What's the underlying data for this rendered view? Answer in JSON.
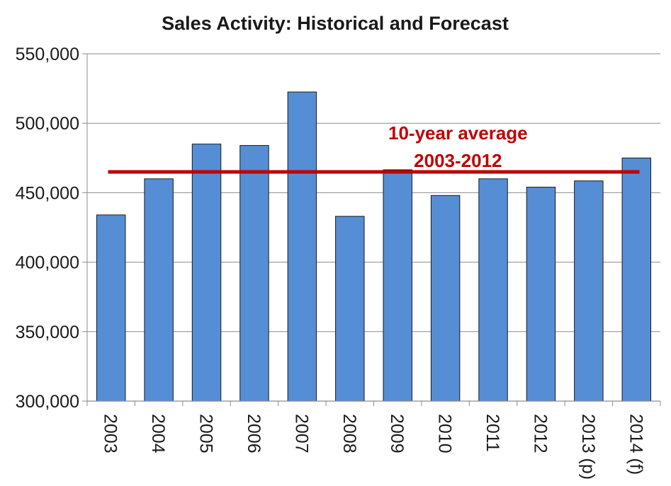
{
  "chart_data": {
    "type": "bar",
    "title": "Sales Activity: Historical and Forecast",
    "xlabel": "",
    "ylabel": "",
    "categories": [
      "2003",
      "2004",
      "2005",
      "2006",
      "2007",
      "2008",
      "2009",
      "2010",
      "2011",
      "2012",
      "2013 (p)",
      "2014 (f)"
    ],
    "values": [
      434000,
      460000,
      485000,
      484000,
      522500,
      433000,
      466500,
      448000,
      460000,
      454000,
      458500,
      475000
    ],
    "ylim": [
      300000,
      550000
    ],
    "yticks": [
      300000,
      350000,
      400000,
      450000,
      500000,
      550000
    ],
    "ytick_labels": [
      "300,000",
      "350,000",
      "400,000",
      "450,000",
      "500,000",
      "550,000"
    ],
    "grid": true,
    "bar_color": "#558ed5",
    "average_line": {
      "value": 465000,
      "from": "2003",
      "to": "2014 (f)",
      "color": "#c00000",
      "label_lines": [
        "10-year average",
        "2003-2012"
      ]
    }
  }
}
